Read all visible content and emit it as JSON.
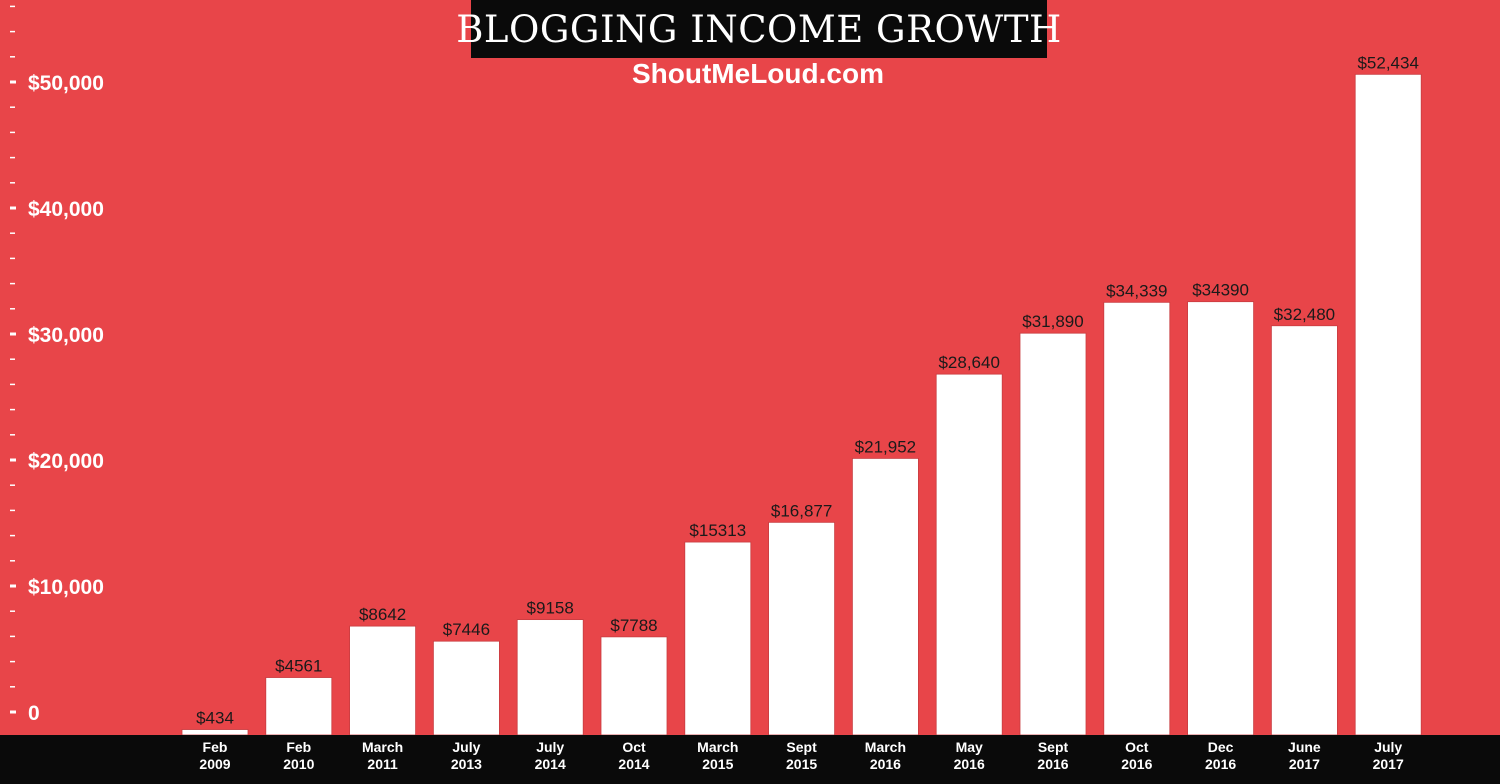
{
  "chart_data": {
    "type": "bar",
    "title": "BLOGGING INCOME GROWTH",
    "subtitle": "ShoutMeLoud.com",
    "xlabel": "",
    "ylabel": "",
    "ylim": [
      0,
      55000
    ],
    "grid": false,
    "legend": "none",
    "y_ticks": [
      {
        "value": 0,
        "label": "0"
      },
      {
        "value": 10000,
        "label": "$10,000"
      },
      {
        "value": 20000,
        "label": "$20,000"
      },
      {
        "value": 30000,
        "label": "$30,000"
      },
      {
        "value": 40000,
        "label": "$40,000"
      },
      {
        "value": 50000,
        "label": "$50,000"
      }
    ],
    "categories": [
      [
        "Feb",
        "2009"
      ],
      [
        "Feb",
        "2010"
      ],
      [
        "March",
        "2011"
      ],
      [
        "July",
        "2013"
      ],
      [
        "July",
        "2014"
      ],
      [
        "Oct",
        "2014"
      ],
      [
        "March",
        "2015"
      ],
      [
        "Sept",
        "2015"
      ],
      [
        "March",
        "2016"
      ],
      [
        "May",
        "2016"
      ],
      [
        "Sept",
        "2016"
      ],
      [
        "Oct",
        "2016"
      ],
      [
        "Dec",
        "2016"
      ],
      [
        "June",
        "2017"
      ],
      [
        "July",
        "2017"
      ]
    ],
    "values": [
      434,
      4561,
      8642,
      7446,
      9158,
      7788,
      15313,
      16877,
      21952,
      28640,
      31890,
      34339,
      34390,
      32480,
      52434
    ],
    "value_labels": [
      "$434",
      "$4561",
      "$8642",
      "$7446",
      "$9158",
      "$7788",
      "$15313",
      "$16,877",
      "$21,952",
      "$28,640",
      "$31,890",
      "$34,339",
      "$34390",
      "$32,480",
      "$52,434"
    ],
    "colors": {
      "background": "#e84549",
      "bar": "#ffffff",
      "band": "#0a0a0a",
      "axis_text": "#ffffff",
      "value_text": "#1a1a1a"
    }
  }
}
